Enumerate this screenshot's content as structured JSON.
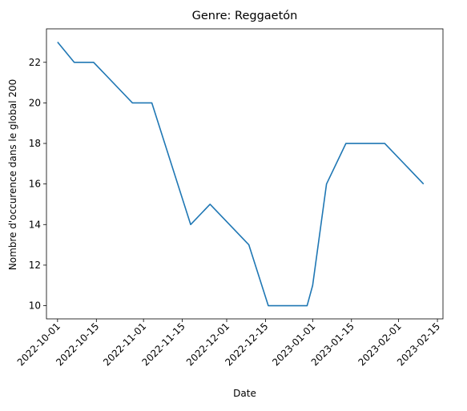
{
  "chart_data": {
    "type": "line",
    "title": "Genre:  Reggaetón",
    "xlabel": "Date",
    "ylabel": "Nombre d'occurence dans le global 200",
    "grid": false,
    "legend": "none",
    "xlim": [
      "2022-09-27",
      "2023-02-17"
    ],
    "ylim": [
      9.35,
      23.65
    ],
    "x_ticks": [
      "2022-10-01",
      "2022-10-15",
      "2022-11-01",
      "2022-11-15",
      "2022-12-01",
      "2022-12-15",
      "2023-01-01",
      "2023-01-15",
      "2023-02-01",
      "2023-02-15"
    ],
    "y_ticks": [
      10,
      12,
      14,
      16,
      18,
      20,
      22
    ],
    "line_color": "#1f77b4",
    "x": [
      "2022-10-01",
      "2022-10-07",
      "2022-10-14",
      "2022-10-28",
      "2022-11-04",
      "2022-11-18",
      "2022-11-25",
      "2022-12-09",
      "2022-12-16",
      "2022-12-30",
      "2023-01-01",
      "2023-01-06",
      "2023-01-13",
      "2023-01-27",
      "2023-02-10"
    ],
    "values": [
      23,
      22,
      22,
      20,
      20,
      14,
      15,
      13,
      10,
      10,
      11,
      16,
      18,
      18,
      16
    ]
  }
}
